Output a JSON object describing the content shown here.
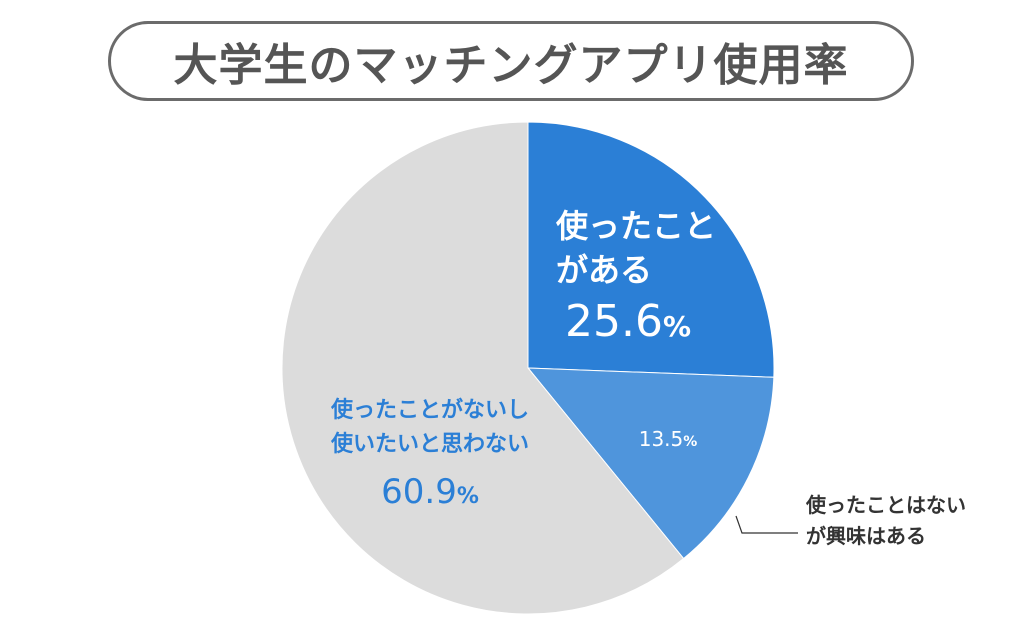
{
  "title": "大学生のマッチングアプリ使用率",
  "chart_data": {
    "type": "pie",
    "title": "大学生のマッチングアプリ使用率",
    "start_angle_deg": 0,
    "direction": "clockwise",
    "slices": [
      {
        "label_lines": [
          "使ったこと",
          "がある"
        ],
        "value": 25.6,
        "value_text": "25.6",
        "unit": "%",
        "color": "#2b7fd6",
        "text_color": "#ffffff"
      },
      {
        "label_lines": [
          "使ったことはない",
          "が興味はある"
        ],
        "value": 13.5,
        "value_text": "13.5",
        "unit": "%",
        "color": "#4f95dc",
        "text_color": "#ffffff",
        "external_label_color": "#333333"
      },
      {
        "label_lines": [
          "使ったことがないし",
          "使いたいと思わない"
        ],
        "value": 60.9,
        "value_text": "60.9",
        "unit": "%",
        "color": "#dcdcdc",
        "text_color": "#2b7fd6"
      }
    ]
  }
}
